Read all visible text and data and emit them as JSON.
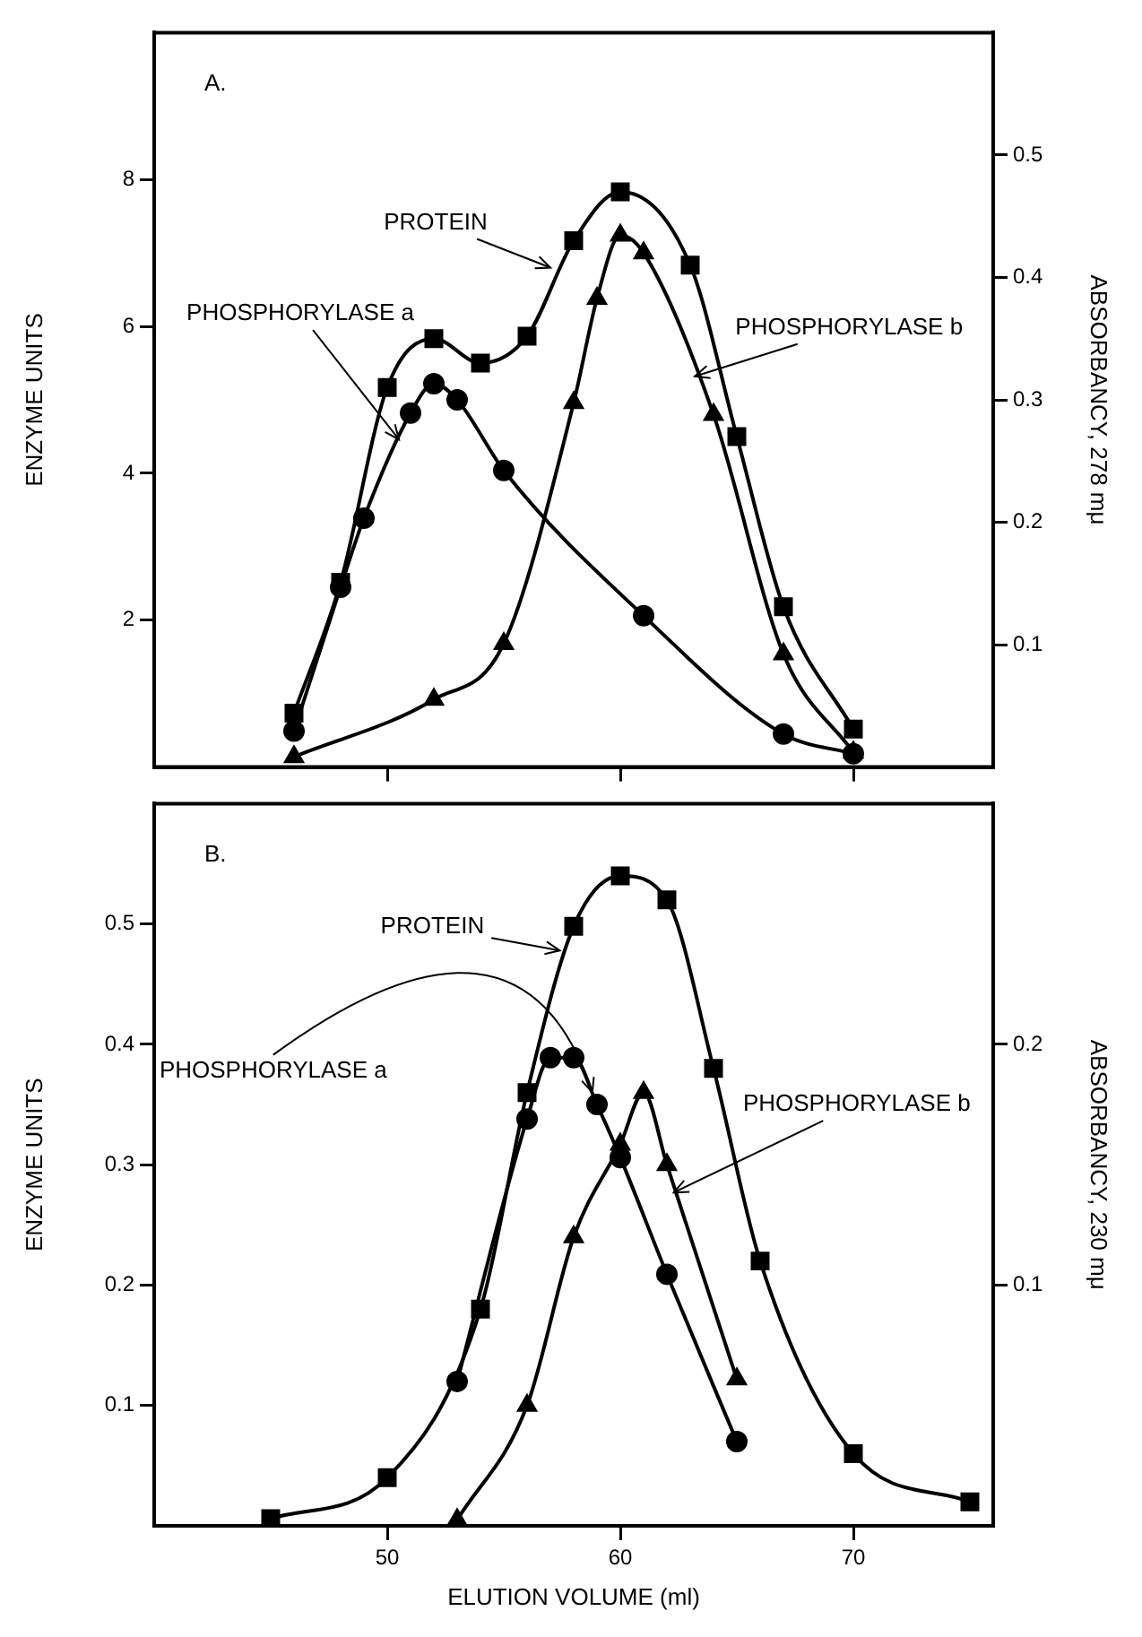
{
  "chart_data": [
    {
      "type": "line",
      "ylabel": "ENZYME UNITS",
      "y2label": "ABSORBANCY, 278 mμ",
      "xlim": [
        40,
        76
      ],
      "xticks": [
        50,
        60,
        70
      ],
      "ylim": [
        0,
        10
      ],
      "yticks": [
        2,
        4,
        6,
        8
      ],
      "y2lim": [
        0,
        0.6
      ],
      "y2ticks": [
        0.1,
        0.2,
        0.3,
        0.4,
        0.5
      ],
      "tick_labels": "y",
      "grid": false,
      "legend": false,
      "annotations": [
        "A.",
        {
          "text": "PROTEIN",
          "x": 57,
          "y": 6.8
        },
        {
          "text": "PHOSPHORYLASE a",
          "x": 50.5,
          "y": 4.46
        },
        {
          "text": "PHOSPHORYLASE b",
          "x": 63.2,
          "y": 5.32
        }
      ],
      "series": [
        {
          "color": "#000000",
          "axis": "y2",
          "marker": "square",
          "x": [
            46,
            48,
            50,
            52,
            54,
            56,
            58,
            60,
            63,
            65,
            67,
            70
          ],
          "values": [
            0.044,
            0.151,
            0.31,
            0.35,
            0.33,
            0.352,
            0.43,
            0.47,
            0.41,
            0.27,
            0.131,
            0.031
          ]
        },
        {
          "color": "#000000",
          "marker": "circle",
          "x": [
            46,
            48,
            49,
            51,
            52,
            53,
            55,
            61,
            67,
            70
          ],
          "values": [
            0.49,
            2.45,
            3.39,
            4.82,
            5.22,
            5.0,
            4.04,
            2.06,
            0.45,
            0.18
          ]
        },
        {
          "color": "#000000",
          "marker": "triangle",
          "x": [
            46,
            52,
            55,
            58,
            59,
            60,
            61,
            64,
            67,
            70
          ],
          "values": [
            0.14,
            0.92,
            1.68,
            4.96,
            6.38,
            7.24,
            7.0,
            4.8,
            1.54,
            0.2
          ]
        }
      ]
    },
    {
      "type": "line",
      "xlabel": "ELUTION VOLUME (ml)",
      "ylabel": "ENZYME UNITS",
      "y2label": "ABSORBANCY, 230 mμ",
      "xlim": [
        40,
        76
      ],
      "xticks": [
        50,
        60,
        70
      ],
      "ylim": [
        0,
        0.6
      ],
      "yticks": [
        0.1,
        0.2,
        0.3,
        0.4,
        0.5
      ],
      "y2lim": [
        0,
        0.3
      ],
      "y2ticks": [
        0.1,
        0.2
      ],
      "grid": false,
      "legend": false,
      "annotations": [
        "B.",
        {
          "text": "PROTEIN",
          "x": 57.4,
          "y": 0.478
        },
        {
          "text": "PHOSPHORYLASE a",
          "x": 58.8,
          "y": 0.36
        },
        {
          "text": "PHOSPHORYLASE b",
          "x": 62.3,
          "y": 0.277
        }
      ],
      "series": [
        {
          "color": "#000000",
          "axis": "y2",
          "marker": "square",
          "x": [
            45,
            50,
            54,
            56,
            58,
            60,
            62,
            64,
            66,
            70,
            75
          ],
          "values": [
            0.003,
            0.02,
            0.09,
            0.18,
            0.249,
            0.27,
            0.26,
            0.19,
            0.11,
            0.03,
            0.01
          ]
        },
        {
          "color": "#000000",
          "marker": "circle",
          "x": [
            53,
            56,
            57,
            58,
            59,
            60,
            62,
            65
          ],
          "values": [
            0.12,
            0.338,
            0.389,
            0.389,
            0.35,
            0.306,
            0.209,
            0.07
          ]
        },
        {
          "color": "#000000",
          "marker": "triangle",
          "x": [
            53,
            56,
            58,
            60,
            61,
            62,
            65
          ],
          "values": [
            0.005,
            0.1,
            0.24,
            0.317,
            0.36,
            0.3,
            0.122
          ]
        }
      ]
    }
  ]
}
